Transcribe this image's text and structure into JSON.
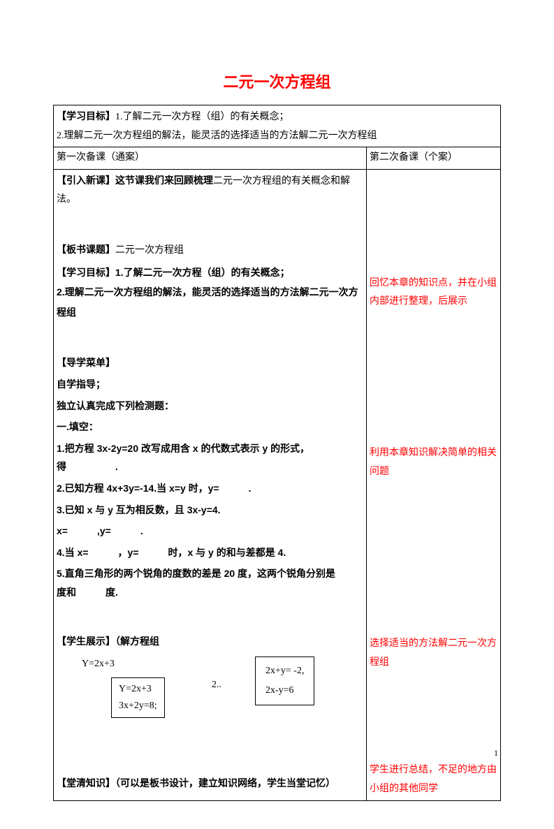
{
  "title": "二元一次方程组",
  "goals": {
    "label": "【学习目标】",
    "g1": "1.了解二元一次方程（组）的有关概念；",
    "g2": "2.理解二元一次方程组的解法，能灵活的选择适当的方法解二元一次方程组"
  },
  "headers": {
    "left": "第一次备课（通案）",
    "right": "第二次备课（个案）"
  },
  "left": {
    "intro_label": "【引入新课】",
    "intro_text": "这节课我们来回顾梳理",
    "intro_text2": "二元一次方程组的有关概念和解法。",
    "board_label": "【板书课题】",
    "board_text": "二元一次方程组",
    "goal_label": "【学习目标】",
    "goal1": "1.了解二元一次方程（组）的有关概念；",
    "goal2": "2.理解二元一次方程组的解法，能灵活的选择适当的方法解二元一次方程组",
    "menu_label": "【导学菜单】",
    "menu_sub": "自学指导；",
    "menu_line": "独立认真完成下列检测题：",
    "fill_label": "一.填空：",
    "q1": "1.把方程 3x-2y=20 改写成用含 x 的代数式表示 y 的形式，得　　　　　.",
    "q2": "2.已知方程 4x+3y=-14.当 x=y 时，y=　　　.",
    "q3a": "3.已知 x 与 y 互为相反数，且 3x-y=4.",
    "q3b": "x=　　　,y=　　　.",
    "q4": "4.当 x=　　　，y=　　　时，x 与 y 的和与差都是 4.",
    "q5": "5.直角三角形的两个锐角的度数的差是 20 度，这两个锐角分别是　　　度和　　　度.",
    "show_label": "【学生展示】",
    "show_text": "（解方程组",
    "eq_top": "Y=2x+3",
    "eq_box1_l1": "Y=2x+3",
    "eq_box1_l2": "3x+2y=8;",
    "eq_mid": "2..",
    "eq_box2_l1": "2x+y= -2,",
    "eq_box2_l2": "2x-y=6",
    "clear_label": "【堂清知识】",
    "clear_text": "（可以是板书设计，建立知识网络，学生当堂记忆）"
  },
  "right": {
    "note1": "回忆本章的知识点，并在小组内部进行整理，后展示",
    "note2": "利用本章知识解决简单的相关问题",
    "note3": "选择适当的方法解二元一次方程组",
    "note4": "学生进行总结，不足的地方由小组的其他同学"
  },
  "page_number": "1",
  "colors": {
    "accent": "#ff0000",
    "text": "#000000",
    "border": "#000000",
    "background": "#ffffff"
  }
}
